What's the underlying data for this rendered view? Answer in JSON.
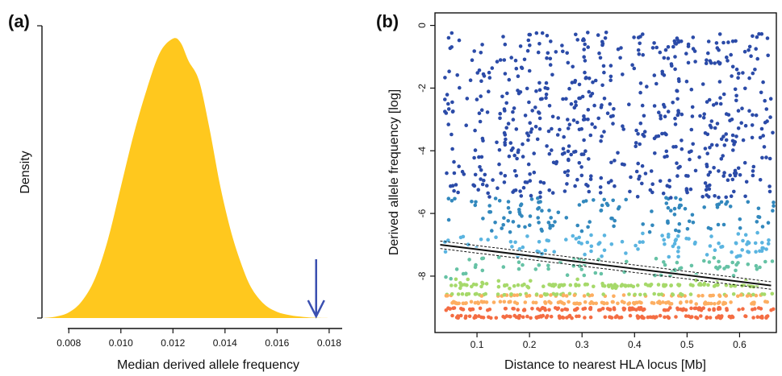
{
  "chart_data": [
    {
      "panel_label": "(a)",
      "type": "area",
      "xlabel": "Median derived allele frequency",
      "ylabel": "Density",
      "xlim": [
        0.007,
        0.0185
      ],
      "xticks": [
        "0.008",
        "0.010",
        "0.012",
        "0.014",
        "0.016",
        "0.018"
      ],
      "x": [
        0.007,
        0.0075,
        0.008,
        0.0085,
        0.009,
        0.0095,
        0.01,
        0.0105,
        0.011,
        0.0115,
        0.012,
        0.0123,
        0.0126,
        0.013,
        0.0134,
        0.0138,
        0.0142,
        0.0146,
        0.015,
        0.0155,
        0.016,
        0.0165,
        0.017,
        0.0175,
        0.018
      ],
      "y": [
        0.0,
        0.005,
        0.02,
        0.06,
        0.14,
        0.28,
        0.47,
        0.66,
        0.82,
        0.95,
        1.0,
        0.985,
        0.92,
        0.85,
        0.68,
        0.48,
        0.32,
        0.2,
        0.11,
        0.05,
        0.022,
        0.01,
        0.004,
        0.001,
        0.0
      ],
      "fill_color": "#FFC81E",
      "annotation": {
        "type": "arrow",
        "x": 0.0175,
        "color": "#3A4FB0"
      }
    },
    {
      "panel_label": "(b)",
      "type": "scatter",
      "xlabel": "Distance to nearest HLA locus [Mb]",
      "ylabel": "Derived allele frequency [log]",
      "xlim": [
        0.02,
        0.67
      ],
      "ylim": [
        -9.8,
        0.4
      ],
      "xticks": [
        "0.1",
        "0.2",
        "0.3",
        "0.4",
        "0.5",
        "0.6"
      ],
      "yticks": [
        "-8",
        "-6",
        "-4",
        "-2",
        "0"
      ],
      "grid": false,
      "point_color_scale": [
        "#D73027",
        "#F46D43",
        "#FDAE61",
        "#A6D96A",
        "#66C2A5",
        "#5AB4E0",
        "#3288BD",
        "#2B4BA8"
      ],
      "regression": {
        "x": [
          0.03,
          0.66
        ],
        "y": [
          -7.0,
          -8.3
        ],
        "ci_offset": 0.12,
        "color": "#111111"
      },
      "points_shown": "approximately 2000 SNP points, dense banding at frequencies below -8"
    }
  ]
}
